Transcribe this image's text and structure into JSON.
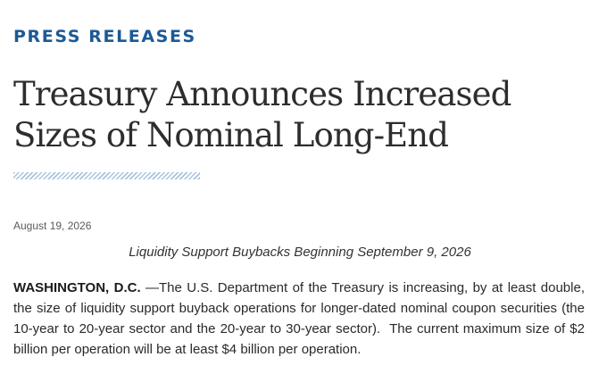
{
  "section": {
    "label": "PRESS RELEASES"
  },
  "release": {
    "title": "Treasury Announces Increased Sizes of Nominal Long-End",
    "date": "August 19, 2026",
    "subtitle": "Liquidity Support Buybacks Beginning September 9, 2026",
    "dateline": "WASHINGTON, D.C.",
    "body": " —The U.S. Department of the Treasury is increasing, by at least double, the size of liquidity support buyback operations for longer-dated nominal coupon securities (the 10-year to 20-year sector and the 20-year to 30-year sector).  The current maximum size of $2 billion per operation will be at least $4 billion per operation."
  },
  "colors": {
    "section_label": "#1c5a96",
    "title_rule": "#a9c3de"
  }
}
